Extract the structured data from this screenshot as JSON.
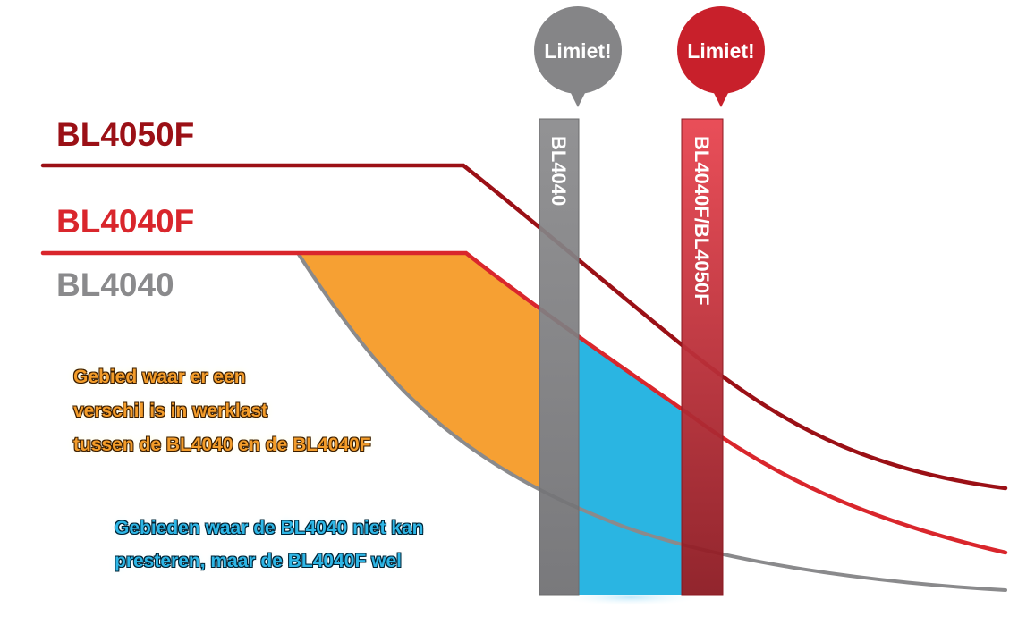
{
  "series": [
    {
      "name": "BL4050F",
      "color": "#9b1016"
    },
    {
      "name": "BL4040F",
      "color": "#d9262c"
    },
    {
      "name": "BL4040",
      "color": "#7d7d80"
    }
  ],
  "limits": [
    {
      "callout": "Limiet!",
      "bar_label": "BL4040",
      "color": "#858587"
    },
    {
      "callout": "Limiet!",
      "bar_label": "BL4040F/BL4050F",
      "color": "#c8202b"
    }
  ],
  "regions": {
    "orange": {
      "lines": [
        "Gebied waar er een",
        "verschil is in werklast",
        "tussen de BL4040 en de BL4040F"
      ],
      "color": "#f6a033"
    },
    "blue": {
      "lines": [
        "Gebieden waar de BL4040 niet kan",
        "presteren, maar de BL4040F wel"
      ],
      "color": "#2ab5e2"
    }
  }
}
